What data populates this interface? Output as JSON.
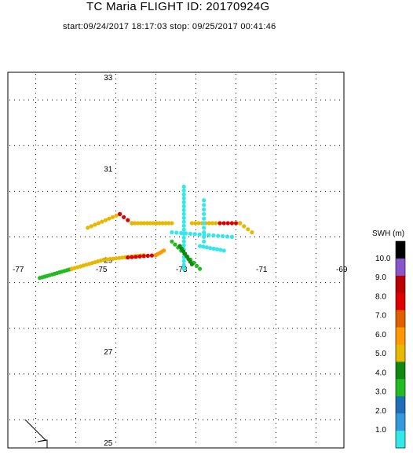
{
  "title": "TC Maria  FLIGHT ID: 20170924G",
  "subtitle": "start:09/24/2017 18:17:03 stop: 09/25/2017 00:41:46",
  "colorbar": {
    "title": "SWH (m)",
    "labels": [
      "1.0",
      "2.0",
      "3.0",
      "4.0",
      "5.0",
      "6.0",
      "7.0",
      "8.0",
      "9.0",
      "10.0"
    ],
    "colors": [
      "#33e8e8",
      "#3399dd",
      "#1f6fb8",
      "#22bb22",
      "#118811",
      "#e6b800",
      "#ff9900",
      "#e06000",
      "#dd0000",
      "#bb0000",
      "#8855cc",
      "#000000"
    ]
  },
  "chart_data": {
    "type": "scatter",
    "title": "TC Maria  FLIGHT ID: 20170924G",
    "subtitle": "start:09/24/2017 18:17:03 stop: 09/25/2017 00:41:46",
    "xlabel": "",
    "ylabel": "",
    "xlim": [
      -77,
      -69
    ],
    "ylim": [
      25,
      33
    ],
    "x_ticks": [
      {
        "label": "-77",
        "value": -77
      },
      {
        "label": "-75",
        "value": -75
      },
      {
        "label": "-73",
        "value": -73
      },
      {
        "label": "-71",
        "value": -71
      },
      {
        "label": "-69",
        "value": -69
      }
    ],
    "y_ticks": [
      {
        "label": "33",
        "value": 33
      },
      {
        "label": "31",
        "value": 31
      },
      {
        "label": "29",
        "value": 29
      },
      {
        "label": "27",
        "value": 27
      },
      {
        "label": "25",
        "value": 25
      }
    ],
    "grid": true,
    "segments": [
      {
        "swh": 4.0,
        "from": [
          -76.4,
          28.6
        ],
        "to": [
          -75.6,
          28.8
        ],
        "n": 14
      },
      {
        "swh": 5.5,
        "from": [
          -75.6,
          28.8
        ],
        "to": [
          -74.8,
          29.0
        ],
        "n": 12
      },
      {
        "swh": 5.5,
        "from": [
          -74.8,
          29.0
        ],
        "to": [
          -73.8,
          29.1
        ],
        "n": 14
      },
      {
        "swh": 7.0,
        "from": [
          -74.2,
          29.05
        ],
        "to": [
          -73.5,
          29.1
        ],
        "n": 8
      },
      {
        "swh": 6.0,
        "from": [
          -73.5,
          29.1
        ],
        "to": [
          -73.3,
          29.2
        ],
        "n": 5
      },
      {
        "swh": 5.5,
        "from": [
          -75.2,
          29.7
        ],
        "to": [
          -74.4,
          30.0
        ],
        "n": 10
      },
      {
        "swh": 7.0,
        "from": [
          -74.4,
          30.0
        ],
        "to": [
          -74.1,
          29.8
        ],
        "n": 4
      },
      {
        "swh": 5.5,
        "from": [
          -74.1,
          29.8
        ],
        "to": [
          -73.1,
          29.8
        ],
        "n": 14
      },
      {
        "swh": 5.0,
        "from": [
          -72.6,
          29.8
        ],
        "to": [
          -72.0,
          29.8
        ],
        "n": 8
      },
      {
        "swh": 7.5,
        "from": [
          -71.9,
          29.8
        ],
        "to": [
          -71.4,
          29.8
        ],
        "n": 6
      },
      {
        "swh": 5.5,
        "from": [
          -71.4,
          29.8
        ],
        "to": [
          -71.1,
          29.6
        ],
        "n": 4
      },
      {
        "swh": 1.0,
        "from": [
          -72.8,
          30.6
        ],
        "to": [
          -72.8,
          28.8
        ],
        "n": 22
      },
      {
        "swh": 1.0,
        "from": [
          -72.3,
          30.3
        ],
        "to": [
          -72.3,
          29.4
        ],
        "n": 10
      },
      {
        "swh": 1.0,
        "from": [
          -73.1,
          29.6
        ],
        "to": [
          -71.6,
          29.5
        ],
        "n": 14
      },
      {
        "swh": 1.0,
        "from": [
          -72.4,
          29.3
        ],
        "to": [
          -71.8,
          29.2
        ],
        "n": 8
      },
      {
        "swh": 4.0,
        "from": [
          -73.1,
          29.4
        ],
        "to": [
          -72.4,
          28.8
        ],
        "n": 10
      },
      {
        "swh": 4.5,
        "from": [
          -72.9,
          29.3
        ],
        "to": [
          -72.6,
          28.9
        ],
        "n": 8
      }
    ]
  }
}
